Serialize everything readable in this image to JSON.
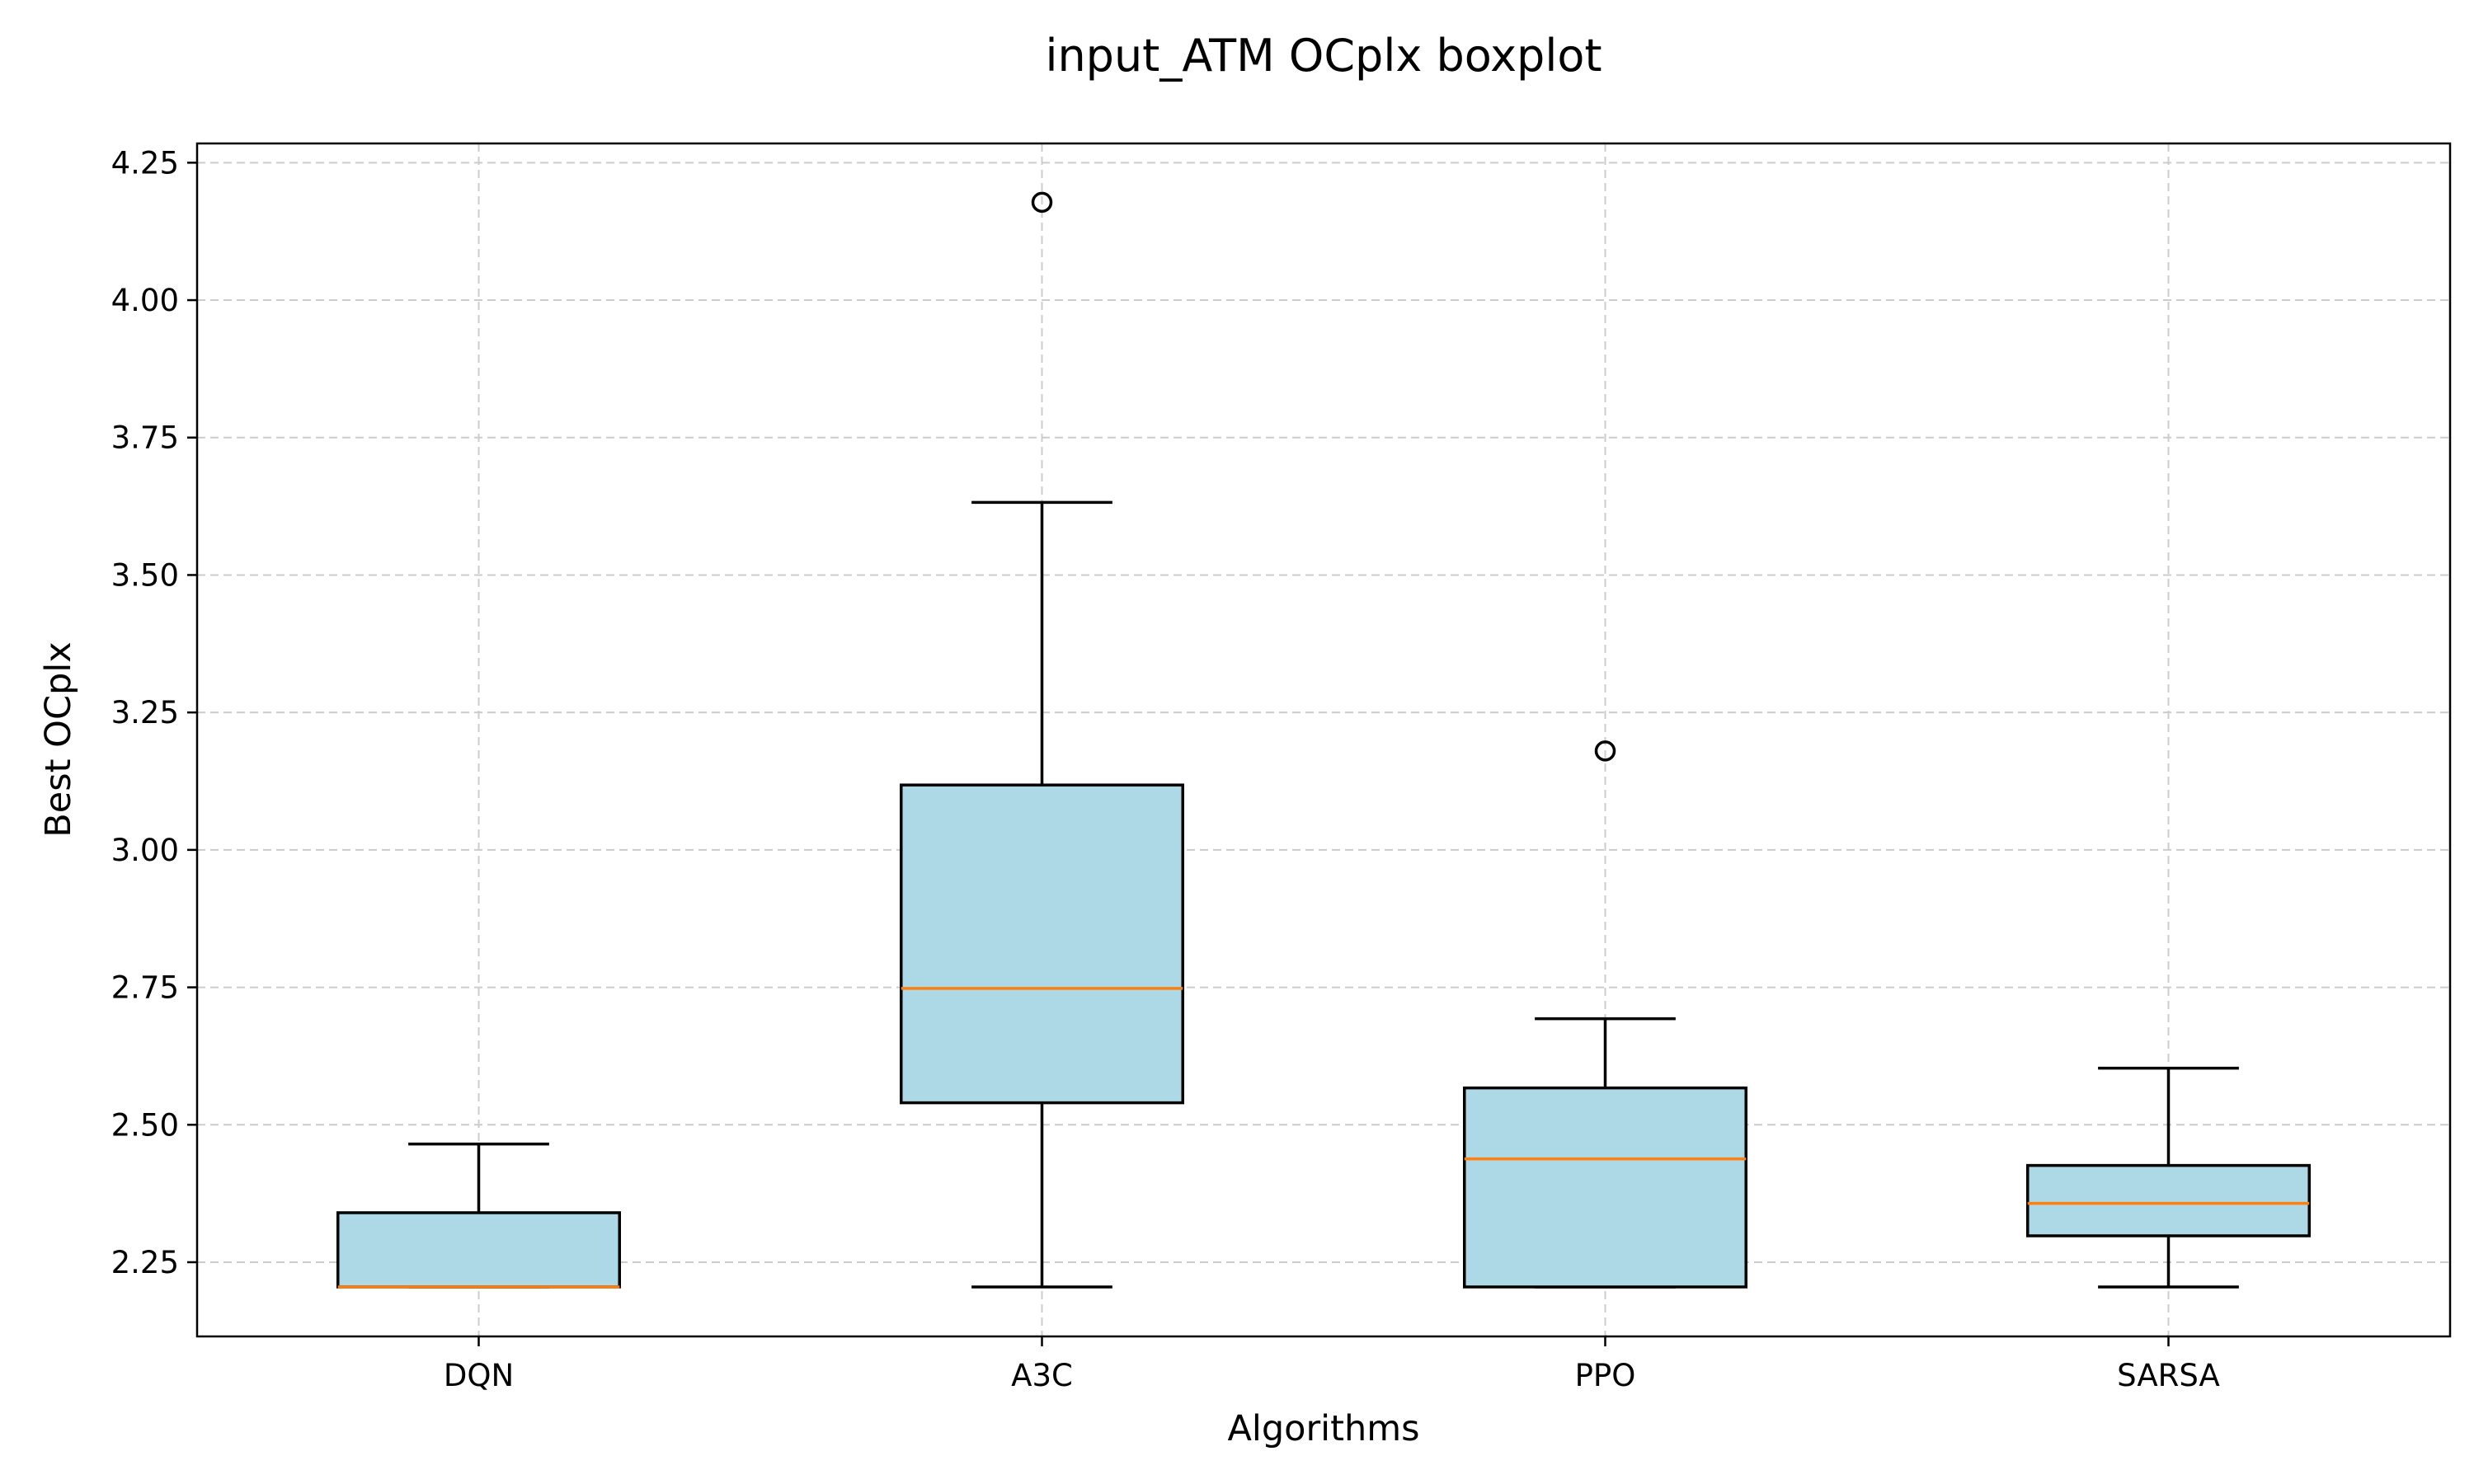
{
  "chart_data": {
    "type": "boxplot",
    "title": "input_ATM OCplx boxplot",
    "xlabel": "Algorithms",
    "ylabel": "Best OCplx",
    "ylim": [
      2.115,
      4.285
    ],
    "yticks": [
      "2.25",
      "2.50",
      "2.75",
      "3.00",
      "3.25",
      "3.50",
      "3.75",
      "4.00",
      "4.25"
    ],
    "grid": true,
    "categories": [
      "DQN",
      "A3C",
      "PPO",
      "SARSA"
    ],
    "boxes": [
      {
        "label": "DQN",
        "whislo": 2.205,
        "q1": 2.205,
        "median": 2.205,
        "q3": 2.34,
        "whishi": 2.465,
        "fliers": []
      },
      {
        "label": "A3C",
        "whislo": 2.205,
        "q1": 2.54,
        "median": 2.748,
        "q3": 3.118,
        "whishi": 3.632,
        "fliers": [
          4.178
        ]
      },
      {
        "label": "PPO",
        "whislo": 2.205,
        "q1": 2.205,
        "median": 2.438,
        "q3": 2.567,
        "whishi": 2.693,
        "fliers": [
          3.18
        ]
      },
      {
        "label": "SARSA",
        "whislo": 2.205,
        "q1": 2.298,
        "median": 2.357,
        "q3": 2.426,
        "whishi": 2.603,
        "fliers": []
      }
    ],
    "colors": {
      "box_fill": "#add8e6",
      "median": "#ff7f0e",
      "edge": "#000000"
    }
  }
}
